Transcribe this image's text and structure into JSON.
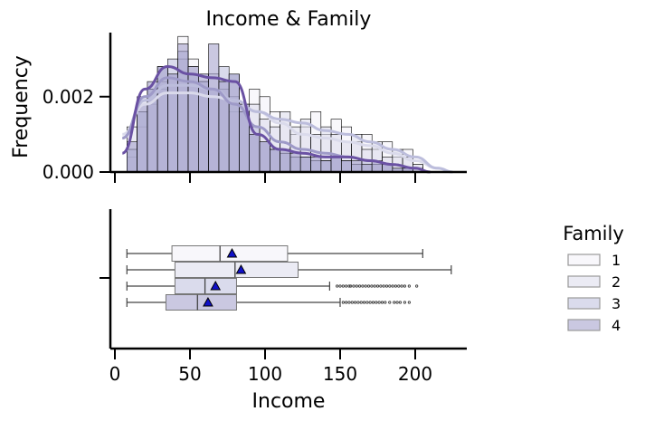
{
  "chart_data": [
    {
      "type": "histogram",
      "title": "Income & Family",
      "ylabel": "Frequency",
      "xlabel": "",
      "xlim": [
        -3,
        236
      ],
      "ylim": [
        0,
        0.0037
      ],
      "yticks": [
        0.0,
        0.002
      ],
      "ytick_labels": [
        "0.000",
        "0.002"
      ],
      "xticks": [
        0,
        50,
        100,
        150,
        200
      ],
      "bin_width": 6.8,
      "bin_start": 8,
      "kde": true,
      "series": [
        {
          "name": "1",
          "color": "#f2f0f7",
          "values": [
            0.0004,
            0.0012,
            0.0018,
            0.0022,
            0.0026,
            0.0036,
            0.003,
            0.0026,
            0.0022,
            0.0024,
            0.0016,
            0.0018,
            0.0022,
            0.002,
            0.0016,
            0.0014,
            0.001,
            0.0012,
            0.0016,
            0.001,
            0.0014,
            0.0012,
            0.0008,
            0.001,
            0.0006,
            0.0008,
            0.0004,
            0.0006,
            0.0002
          ],
          "kde": [
            [
              5,
              0.001
            ],
            [
              20,
              0.0018
            ],
            [
              35,
              0.0021
            ],
            [
              50,
              0.0021
            ],
            [
              65,
              0.002
            ],
            [
              80,
              0.0019
            ],
            [
              95,
              0.0016
            ],
            [
              110,
              0.0013
            ],
            [
              125,
              0.001
            ],
            [
              140,
              0.0009
            ],
            [
              155,
              0.0008
            ],
            [
              170,
              0.0007
            ],
            [
              185,
              0.0005
            ],
            [
              200,
              0.0003
            ],
            [
              215,
              0.0001
            ],
            [
              225,
              0.0
            ]
          ]
        },
        {
          "name": "2",
          "color": "#dadaeb",
          "values": [
            0.0012,
            0.002,
            0.0022,
            0.0024,
            0.0026,
            0.003,
            0.0028,
            0.0024,
            0.0026,
            0.0022,
            0.002,
            0.0016,
            0.0018,
            0.0014,
            0.0012,
            0.0016,
            0.0012,
            0.0014,
            0.001,
            0.0012,
            0.001,
            0.0008,
            0.001,
            0.0006,
            0.0008,
            0.0004,
            0.0006,
            0.0004,
            0.0002
          ],
          "kde": [
            [
              5,
              0.0009
            ],
            [
              20,
              0.0019
            ],
            [
              35,
              0.0023
            ],
            [
              50,
              0.0023
            ],
            [
              65,
              0.0022
            ],
            [
              80,
              0.0019
            ],
            [
              95,
              0.0016
            ],
            [
              110,
              0.0014
            ],
            [
              125,
              0.0013
            ],
            [
              140,
              0.0011
            ],
            [
              155,
              0.001
            ],
            [
              170,
              0.0008
            ],
            [
              185,
              0.0006
            ],
            [
              200,
              0.0004
            ],
            [
              215,
              0.0001
            ],
            [
              225,
              0.0
            ]
          ]
        },
        {
          "name": "3",
          "color": "#bcbddc",
          "values": [
            0.0006,
            0.0016,
            0.0022,
            0.0028,
            0.003,
            0.0032,
            0.0026,
            0.0024,
            0.0022,
            0.0028,
            0.0026,
            0.0016,
            0.0012,
            0.0008,
            0.0006,
            0.0005,
            0.0004,
            0.0004,
            0.0003,
            0.0003,
            0.0004,
            0.0003,
            0.0002,
            0.0003,
            0.0002,
            0.0002,
            0.0001,
            0.0001,
            0.0001
          ],
          "kde": [
            [
              5,
              0.0009
            ],
            [
              20,
              0.002
            ],
            [
              35,
              0.0025
            ],
            [
              50,
              0.0024
            ],
            [
              65,
              0.0022
            ],
            [
              80,
              0.0018
            ],
            [
              95,
              0.0012
            ],
            [
              110,
              0.0008
            ],
            [
              125,
              0.0006
            ],
            [
              140,
              0.0005
            ],
            [
              155,
              0.0004
            ],
            [
              170,
              0.0003
            ],
            [
              185,
              0.0002
            ],
            [
              200,
              0.0001
            ],
            [
              210,
              0.0
            ]
          ]
        },
        {
          "name": "4",
          "color": "#9e9ac8",
          "values": [
            0.0008,
            0.0018,
            0.0024,
            0.0028,
            0.0026,
            0.0034,
            0.0028,
            0.0026,
            0.0034,
            0.0024,
            0.0026,
            0.0018,
            0.001,
            0.0008,
            0.0006,
            0.0006,
            0.0005,
            0.0004,
            0.0004,
            0.0003,
            0.0004,
            0.0003,
            0.0003,
            0.0002,
            0.0003,
            0.0002,
            0.0001,
            0.0001,
            0.0
          ],
          "kde": [
            [
              5,
              0.0005
            ],
            [
              20,
              0.0022
            ],
            [
              35,
              0.0028
            ],
            [
              50,
              0.0026
            ],
            [
              65,
              0.0025
            ],
            [
              80,
              0.0024
            ],
            [
              95,
              0.001
            ],
            [
              110,
              0.0006
            ],
            [
              125,
              0.0005
            ],
            [
              140,
              0.0004
            ],
            [
              155,
              0.0004
            ],
            [
              170,
              0.0003
            ],
            [
              185,
              0.0002
            ],
            [
              200,
              0.0001
            ],
            [
              210,
              0.0
            ]
          ]
        }
      ],
      "kde_colors": [
        "#dadaeb",
        "#bcbddc",
        "#9e9ac8",
        "#6a51a3"
      ]
    },
    {
      "type": "box",
      "xlabel": "Income",
      "ylabel": "",
      "xlim": [
        -3,
        236
      ],
      "xticks": [
        0,
        50,
        100,
        150,
        200
      ],
      "xtick_labels": [
        "0",
        "50",
        "100",
        "150",
        "200"
      ],
      "showmeans": true,
      "series": [
        {
          "name": "1",
          "color": "#f2f0f7",
          "whisker_low": 8,
          "q1": 38,
          "median": 70,
          "q3": 115,
          "whisker_high": 205,
          "mean": 78,
          "outliers": []
        },
        {
          "name": "2",
          "color": "#dadaeb",
          "whisker_low": 8,
          "q1": 40,
          "median": 80,
          "q3": 122,
          "whisker_high": 224,
          "mean": 84,
          "outliers": []
        },
        {
          "name": "3",
          "color": "#bcbddc",
          "whisker_low": 8,
          "q1": 40,
          "median": 60,
          "q3": 81,
          "whisker_high": 143,
          "mean": 67,
          "outliers": [
            148,
            150,
            152,
            154,
            156,
            157,
            159,
            161,
            163,
            165,
            167,
            169,
            171,
            173,
            175,
            177,
            179,
            181,
            183,
            185,
            187,
            189,
            191,
            193,
            196,
            201
          ]
        },
        {
          "name": "4",
          "color": "#9e9ac8",
          "whisker_low": 8,
          "q1": 34,
          "median": 55,
          "q3": 81,
          "whisker_high": 150,
          "mean": 62,
          "outliers": [
            152,
            154,
            156,
            158,
            160,
            162,
            164,
            166,
            168,
            170,
            172,
            174,
            176,
            178,
            180,
            183,
            186,
            188,
            190,
            193,
            196
          ]
        }
      ]
    }
  ],
  "legend": {
    "title": "Family",
    "entries": [
      "1",
      "2",
      "3",
      "4"
    ],
    "placement": "center-right"
  }
}
